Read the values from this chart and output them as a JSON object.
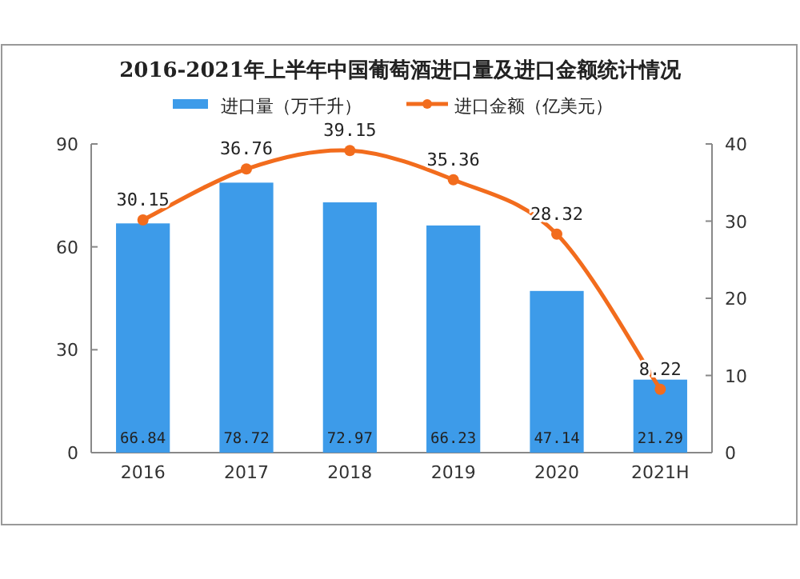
{
  "chart_data": {
    "type": "bar",
    "title": "2016-2021年上半年中国葡萄酒进口量及进口金额统计情况",
    "categories": [
      "2016",
      "2017",
      "2018",
      "2019",
      "2020",
      "2021H"
    ],
    "series": [
      {
        "name": "进口量（万千升）",
        "color": "#3d9be9",
        "values": [
          66.84,
          78.72,
          72.97,
          66.23,
          47.14,
          21.29
        ]
      },
      {
        "name": "进口金额（亿美元）",
        "type": "line",
        "axis": "y2",
        "color": "#f26c1d",
        "marker": "circle",
        "values": [
          30.15,
          36.76,
          39.15,
          35.36,
          28.32,
          8.22
        ]
      }
    ],
    "ylim": [
      0,
      90
    ],
    "yticks": [
      0,
      30,
      60,
      90
    ],
    "y2lim": [
      0,
      40
    ],
    "y2ticks": [
      0,
      10,
      20,
      30,
      40
    ],
    "data_labels": true,
    "legend": "top",
    "grid": false
  }
}
